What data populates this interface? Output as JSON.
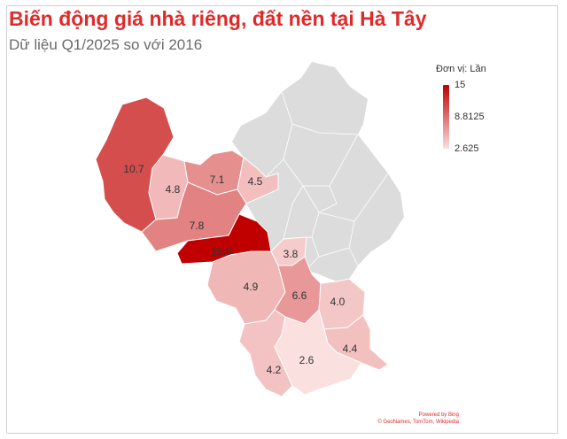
{
  "title": "Biến động giá nhà riêng, đất nền tại Hà Tây",
  "subtitle": "Dữ liệu Q1/2025 so với 2016",
  "legend": {
    "title": "Đơn vị: Lần",
    "max_label": "15",
    "mid_label": "8.8125",
    "min_label": "2.625",
    "max_value": 15,
    "min_value": 2.625,
    "color_low": "#fbe0e0",
    "color_high": "#c00000"
  },
  "credits": {
    "line1": "Powered by Bing",
    "line2": "© GeoNames, TomTom, Wikipedia"
  },
  "chart_data": {
    "type": "choropleth",
    "unit": "Lần",
    "regions": [
      {
        "id": "r1",
        "value": 10.7,
        "label": "10.7"
      },
      {
        "id": "r2",
        "value": 4.8,
        "label": "4.8"
      },
      {
        "id": "r3",
        "value": 7.1,
        "label": "7.1"
      },
      {
        "id": "r4",
        "value": 4.5,
        "label": "4.5"
      },
      {
        "id": "r5",
        "value": 7.8,
        "label": "7.8"
      },
      {
        "id": "r6",
        "value": 15.0,
        "label": "15.0"
      },
      {
        "id": "r7",
        "value": 3.8,
        "label": "3.8"
      },
      {
        "id": "r8",
        "value": 4.9,
        "label": "4.9"
      },
      {
        "id": "r9",
        "value": 6.6,
        "label": "6.6"
      },
      {
        "id": "r10",
        "value": 4.0,
        "label": "4.0"
      },
      {
        "id": "r11",
        "value": 4.4,
        "label": "4.4"
      },
      {
        "id": "r12",
        "value": 4.2,
        "label": "4.2"
      },
      {
        "id": "r13",
        "value": 2.6,
        "label": "2.6"
      }
    ],
    "no_data_color": "#dcdcdc"
  }
}
